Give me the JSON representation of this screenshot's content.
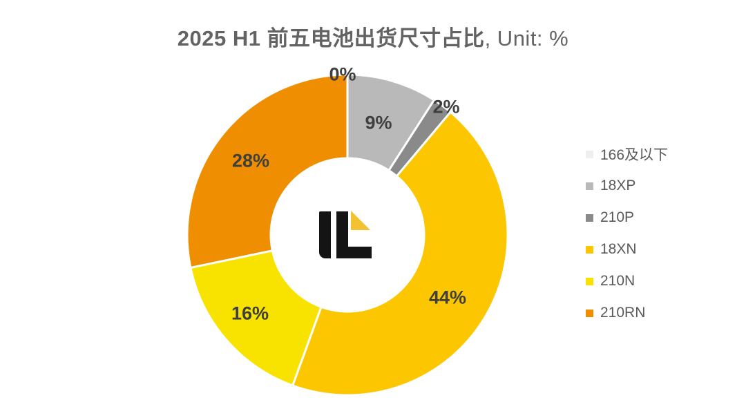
{
  "title": {
    "main": "2025 H1 前五电池出货尺寸占比",
    "suffix": ", Unit: %"
  },
  "chart_data": {
    "type": "pie",
    "subtype": "donut",
    "title": "2025 H1 前五电池出货尺寸占比",
    "unit": "%",
    "categories": [
      "166及以下",
      "18XP",
      "210P",
      "18XN",
      "210N",
      "210RN"
    ],
    "values": [
      0,
      9,
      2,
      44,
      16,
      28
    ],
    "labels": [
      "0%",
      "9%",
      "2%",
      "44%",
      "16%",
      "28%"
    ],
    "colors": [
      "#efefef",
      "#b9b9b9",
      "#8a8a8a",
      "#fcc600",
      "#f8e300",
      "#ef8e00"
    ],
    "legend_position": "right",
    "start_angle_deg": 0,
    "clockwise": true,
    "slice_border_color": "#ffffff"
  },
  "logo": {
    "name": "infolink-logo",
    "letters": "IL",
    "letter_color": "#141414",
    "accent_color": "#f2c233"
  }
}
